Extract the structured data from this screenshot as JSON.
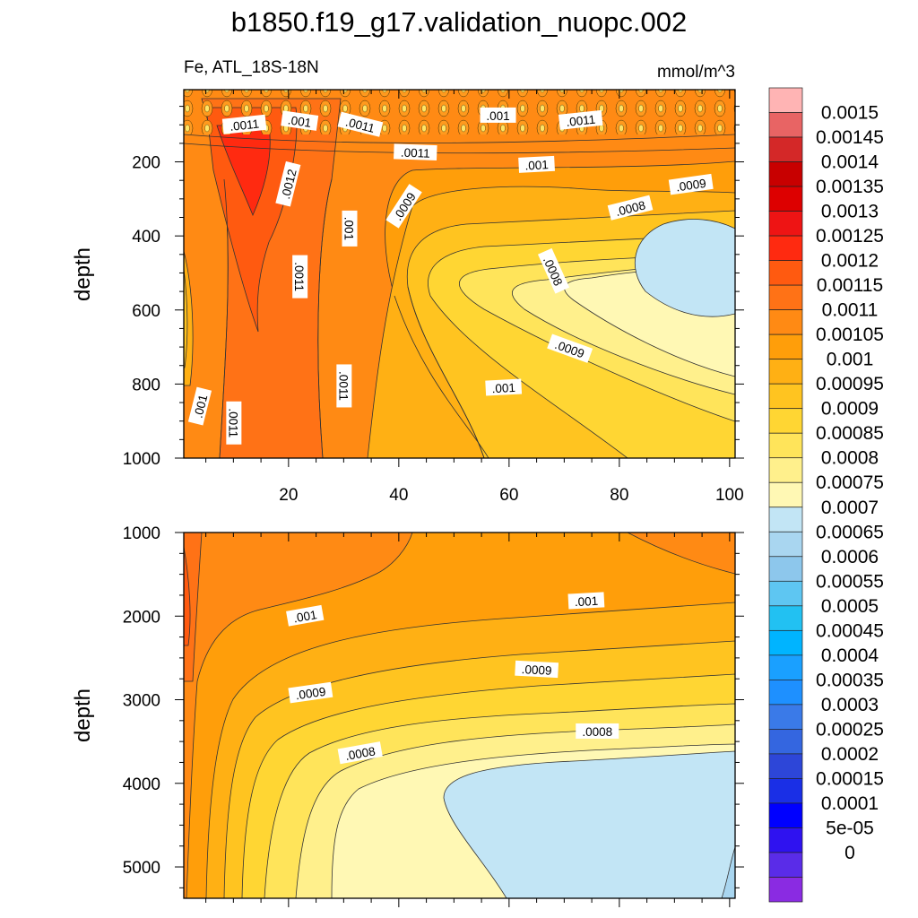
{
  "chart_data": {
    "type": "heatmap",
    "title": "b1850.f19_g17.validation_nuopc.002",
    "variable_label": "Fe, ATL_18S-18N",
    "units_label": "mmol/m^3",
    "colorbar": {
      "colors": [
        "#8a2be2",
        "#5a2ce8",
        "#2f12f0",
        "#0000ff",
        "#1a2fe6",
        "#2d46d8",
        "#3466e0",
        "#3a7ae8",
        "#1e90ff",
        "#1aa0ff",
        "#00b4ff",
        "#22c1f2",
        "#5ec6f2",
        "#8dc7ec",
        "#a9d6f0",
        "#c2e5f5",
        "#fff8b4",
        "#fff08c",
        "#ffe45a",
        "#ffd633",
        "#ffc420",
        "#ffb014",
        "#ff9e0a",
        "#ff8a14",
        "#ff7216",
        "#ff5a10",
        "#ff2a10",
        "#ee1414",
        "#dd0000",
        "#c80000",
        "#d42828",
        "#e86464",
        "#ffb4b4"
      ],
      "labels": [
        "0.0015",
        "0.00145",
        "0.0014",
        "0.00135",
        "0.0013",
        "0.00125",
        "0.0012",
        "0.00115",
        "0.0011",
        "0.00105",
        "0.001",
        "0.00095",
        "0.0009",
        "0.00085",
        "0.0008",
        "0.00075",
        "0.0007",
        "0.00065",
        "0.0006",
        "0.00055",
        "0.0005",
        "0.00045",
        "0.0004",
        "0.00035",
        "0.0003",
        "0.00025",
        "0.0002",
        "0.00015",
        "0.0001",
        "5e-05",
        "0"
      ]
    },
    "panels": [
      {
        "name": "upper",
        "ylabel": "depth",
        "xlim": [
          1,
          101
        ],
        "ylim": [
          1000,
          5
        ],
        "xticks": [
          20,
          40,
          60,
          80,
          100
        ],
        "xtick_labels": [
          "20",
          "40",
          "60",
          "80",
          "100"
        ],
        "yticks": [
          200,
          400,
          600,
          800,
          1000
        ],
        "ytick_labels": [
          "200",
          "400",
          "600",
          "800",
          "1000"
        ],
        "contour_labels": [
          {
            "text": ".0011",
            "x": 12,
            "y": 100,
            "angle": -6
          },
          {
            "text": ".001",
            "x": 22,
            "y": 90,
            "angle": 8
          },
          {
            "text": ".0011",
            "x": 33,
            "y": 100,
            "angle": 14
          },
          {
            "text": ".001",
            "x": 58,
            "y": 75,
            "angle": 0
          },
          {
            "text": ".0011",
            "x": 73,
            "y": 88,
            "angle": -6
          },
          {
            "text": ".0011",
            "x": 43,
            "y": 175,
            "angle": 2
          },
          {
            "text": ".001",
            "x": 65,
            "y": 208,
            "angle": -3
          },
          {
            "text": ".0012",
            "x": 20,
            "y": 260,
            "angle": -76
          },
          {
            "text": ".0009",
            "x": 41,
            "y": 320,
            "angle": -57
          },
          {
            "text": ".001",
            "x": 31,
            "y": 380,
            "angle": 90
          },
          {
            "text": ".0008",
            "x": 82,
            "y": 325,
            "angle": -14
          },
          {
            "text": ".0009",
            "x": 93,
            "y": 262,
            "angle": -8
          },
          {
            "text": ".0008",
            "x": 68,
            "y": 495,
            "angle": 66
          },
          {
            "text": ".0011",
            "x": 22,
            "y": 510,
            "angle": 90
          },
          {
            "text": ".0009",
            "x": 71,
            "y": 705,
            "angle": 20
          },
          {
            "text": ".0011",
            "x": 30,
            "y": 805,
            "angle": 90
          },
          {
            "text": ".001",
            "x": 59,
            "y": 810,
            "angle": -3
          },
          {
            "text": ".001",
            "x": 4,
            "y": 860,
            "angle": -76
          },
          {
            "text": ".0011",
            "x": 10,
            "y": 905,
            "angle": 90
          }
        ]
      },
      {
        "name": "lower",
        "ylabel": "depth",
        "xlim": [
          1,
          101
        ],
        "ylim": [
          5375,
          1000
        ],
        "yticks": [
          1000,
          2000,
          3000,
          4000,
          5000
        ],
        "ytick_labels": [
          "1000",
          "2000",
          "3000",
          "4000",
          "5000"
        ],
        "contour_labels": [
          {
            "text": ".001",
            "x": 23,
            "y": 2000,
            "angle": -10
          },
          {
            "text": ".001",
            "x": 74,
            "y": 1820,
            "angle": -3
          },
          {
            "text": ".0009",
            "x": 24,
            "y": 2920,
            "angle": -8
          },
          {
            "text": ".0009",
            "x": 65,
            "y": 2640,
            "angle": 3
          },
          {
            "text": ".0008",
            "x": 33,
            "y": 3640,
            "angle": -10
          },
          {
            "text": ".0008",
            "x": 76,
            "y": 3380,
            "angle": 0
          }
        ]
      }
    ]
  }
}
